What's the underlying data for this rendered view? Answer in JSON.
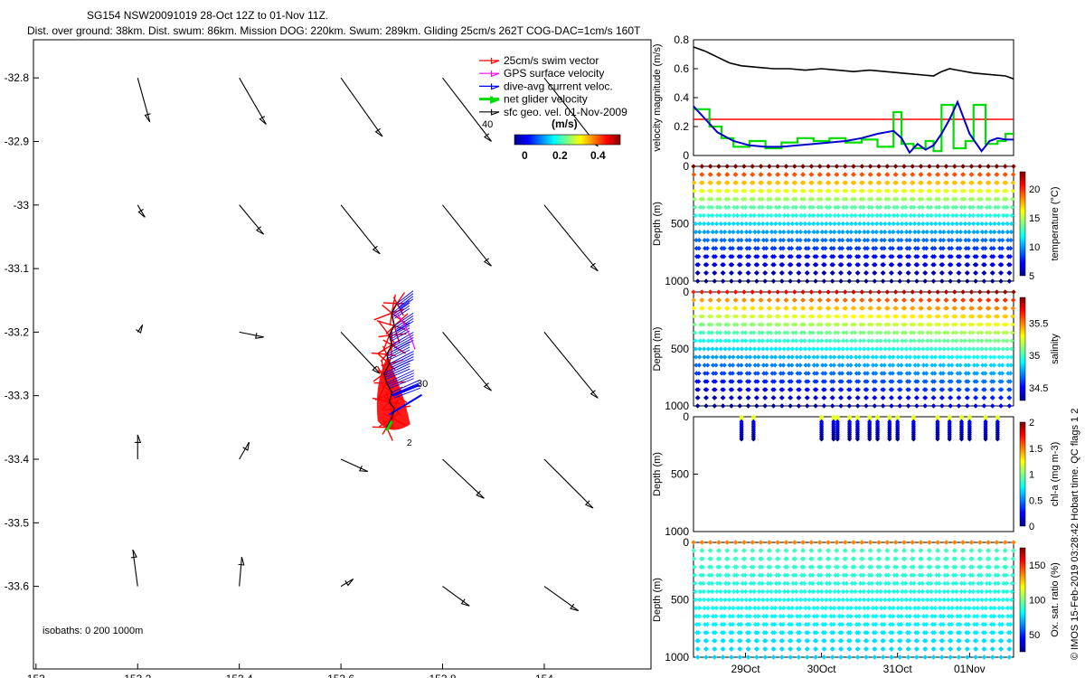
{
  "header": {
    "line1": "SG154 NSW20091019 28-Oct 12Z to 01-Nov 11Z.",
    "line2": "Dist. over ground: 38km. Dist. swum: 86km. Mission DOG: 220km. Swum: 289km. Gliding 25cm/s 262T COG-DAC=1cm/s 160T"
  },
  "credit": "© IMOS 15-Feb-2019 03:28:42 Hobart time. QC flags 1  2",
  "colors": {
    "swim": "#ff0000",
    "gps": "#ff00ff",
    "dac": "#0000ff",
    "net": "#00dd00",
    "geo": "#000000",
    "speed_line": "#000000"
  },
  "chart_data": [
    {
      "id": "track_map",
      "type": "scatter",
      "title": "",
      "xlabel": "",
      "ylabel": "",
      "xlim": [
        152.995,
        154.21
      ],
      "ylim": [
        -33.73,
        -32.74
      ],
      "x_ticks": [
        153,
        153.2,
        153.4,
        153.6,
        153.8,
        154
      ],
      "x_tick_labels": [
        "153",
        "153.2",
        "153.4",
        "153.6",
        "153.8",
        "154"
      ],
      "y_ticks": [
        -32.8,
        -32.9,
        -33,
        -33.1,
        -33.2,
        -33.3,
        -33.4,
        -33.5,
        -33.6
      ],
      "y_tick_labels": [
        "-32.8",
        "-32.9",
        "-33",
        "-33.1",
        "-33.2",
        "-33.3",
        "-33.4",
        "-33.5",
        "-33.6"
      ],
      "legend": [
        {
          "label": "25cm/s swim vector",
          "color": "#ff0000"
        },
        {
          "label": "GPS surface velocity",
          "color": "#ff00ff"
        },
        {
          "label": "dive-avg current veloc.",
          "color": "#0000ff"
        },
        {
          "label": "net glider velocity",
          "color": "#00dd00"
        },
        {
          "label": "sfc geo. vel. 01-Nov-2009",
          "color": "#000000"
        }
      ],
      "legend_position": "top-right",
      "colorbar": {
        "label": "(m/s)",
        "range": [
          0,
          0.5
        ],
        "tick_labels": [
          "0",
          "0.2",
          "0.4"
        ]
      },
      "isobath_label": "isobaths: 0   200   1000m",
      "track_labels": [
        "40",
        "30",
        "2"
      ],
      "geo_vectors": [
        {
          "lon": 153.2,
          "lat": -32.8,
          "u": 0.05,
          "v": -0.18
        },
        {
          "lon": 153.4,
          "lat": -32.8,
          "u": 0.11,
          "v": -0.19
        },
        {
          "lon": 153.6,
          "lat": -32.8,
          "u": 0.17,
          "v": -0.24
        },
        {
          "lon": 153.8,
          "lat": -32.8,
          "u": 0.2,
          "v": -0.26
        },
        {
          "lon": 154.0,
          "lat": -32.8,
          "u": 0.22,
          "v": -0.28
        },
        {
          "lon": 153.2,
          "lat": -33.0,
          "u": 0.03,
          "v": -0.05
        },
        {
          "lon": 153.4,
          "lat": -33.0,
          "u": 0.1,
          "v": -0.12
        },
        {
          "lon": 153.6,
          "lat": -33.0,
          "u": 0.16,
          "v": -0.2
        },
        {
          "lon": 153.8,
          "lat": -33.0,
          "u": 0.2,
          "v": -0.25
        },
        {
          "lon": 154.0,
          "lat": -33.0,
          "u": 0.22,
          "v": -0.27
        },
        {
          "lon": 153.2,
          "lat": -33.2,
          "u": 0.02,
          "v": 0.03
        },
        {
          "lon": 153.4,
          "lat": -33.2,
          "u": 0.1,
          "v": -0.02
        },
        {
          "lon": 153.6,
          "lat": -33.2,
          "u": 0.16,
          "v": -0.17
        },
        {
          "lon": 153.8,
          "lat": -33.2,
          "u": 0.2,
          "v": -0.24
        },
        {
          "lon": 154.0,
          "lat": -33.2,
          "u": 0.22,
          "v": -0.27
        },
        {
          "lon": 153.2,
          "lat": -33.4,
          "u": 0.0,
          "v": 0.1
        },
        {
          "lon": 153.4,
          "lat": -33.4,
          "u": 0.04,
          "v": 0.07
        },
        {
          "lon": 153.6,
          "lat": -33.4,
          "u": 0.11,
          "v": -0.05
        },
        {
          "lon": 153.8,
          "lat": -33.4,
          "u": 0.17,
          "v": -0.16
        },
        {
          "lon": 154.0,
          "lat": -33.4,
          "u": 0.2,
          "v": -0.2
        },
        {
          "lon": 153.2,
          "lat": -33.6,
          "u": -0.02,
          "v": 0.15
        },
        {
          "lon": 153.4,
          "lat": -33.6,
          "u": 0.01,
          "v": 0.12
        },
        {
          "lon": 153.6,
          "lat": -33.6,
          "u": 0.05,
          "v": 0.03
        },
        {
          "lon": 153.8,
          "lat": -33.6,
          "u": 0.11,
          "v": -0.08
        },
        {
          "lon": 154.0,
          "lat": -33.6,
          "u": 0.14,
          "v": -0.1
        }
      ],
      "glider_track": [
        {
          "lon": 153.71,
          "lat": -33.155
        },
        {
          "lon": 153.7,
          "lat": -33.17
        },
        {
          "lon": 153.705,
          "lat": -33.19
        },
        {
          "lon": 153.695,
          "lat": -33.205
        },
        {
          "lon": 153.7,
          "lat": -33.22
        },
        {
          "lon": 153.69,
          "lat": -33.235
        },
        {
          "lon": 153.695,
          "lat": -33.25
        },
        {
          "lon": 153.685,
          "lat": -33.265
        },
        {
          "lon": 153.69,
          "lat": -33.28
        },
        {
          "lon": 153.7,
          "lat": -33.295
        },
        {
          "lon": 153.695,
          "lat": -33.31
        },
        {
          "lon": 153.705,
          "lat": -33.32
        },
        {
          "lon": 153.7,
          "lat": -33.335
        },
        {
          "lon": 153.69,
          "lat": -33.35
        }
      ]
    },
    {
      "id": "velocity",
      "type": "line",
      "xlim": [
        0,
        4
      ],
      "ylim": [
        0,
        0.8
      ],
      "y_ticks": [
        0,
        0.2,
        0.4,
        0.6,
        0.8
      ],
      "y_tick_labels": [
        "0",
        "0.2",
        "0.4",
        "0.6",
        "0.8"
      ],
      "ylabel": "velocity magnitude (m/s)",
      "series": [
        {
          "name": "speed",
          "color": "#000000",
          "x": [
            0,
            0.15,
            0.3,
            0.45,
            0.6,
            0.8,
            1.0,
            1.2,
            1.4,
            1.6,
            1.8,
            2.0,
            2.2,
            2.4,
            2.6,
            2.8,
            3.0,
            3.1,
            3.2,
            3.3,
            3.5,
            3.7,
            3.9,
            4.0
          ],
          "y": [
            0.75,
            0.72,
            0.68,
            0.64,
            0.62,
            0.61,
            0.6,
            0.6,
            0.59,
            0.6,
            0.59,
            0.58,
            0.59,
            0.58,
            0.57,
            0.56,
            0.55,
            0.58,
            0.6,
            0.59,
            0.57,
            0.56,
            0.55,
            0.53
          ]
        },
        {
          "name": "swim 25 cm/s",
          "color": "#ff0000",
          "x": [
            0,
            4
          ],
          "y": [
            0.25,
            0.25
          ]
        },
        {
          "name": "net",
          "color": "#00dd00",
          "x": [
            0,
            0.2,
            0.2,
            0.35,
            0.35,
            0.5,
            0.5,
            0.7,
            0.7,
            0.9,
            0.9,
            1.1,
            1.1,
            1.3,
            1.3,
            1.5,
            1.5,
            1.7,
            1.7,
            1.9,
            1.9,
            2.1,
            2.1,
            2.3,
            2.3,
            2.5,
            2.5,
            2.6,
            2.6,
            2.75,
            2.75,
            2.9,
            2.9,
            3.0,
            3.0,
            3.1,
            3.1,
            3.25,
            3.25,
            3.4,
            3.4,
            3.5,
            3.5,
            3.65,
            3.65,
            3.8,
            3.8,
            3.9,
            3.9,
            4.0
          ],
          "y": [
            0.32,
            0.32,
            0.2,
            0.2,
            0.12,
            0.12,
            0.06,
            0.06,
            0.1,
            0.1,
            0.05,
            0.05,
            0.09,
            0.09,
            0.12,
            0.12,
            0.1,
            0.1,
            0.12,
            0.12,
            0.09,
            0.09,
            0.11,
            0.11,
            0.06,
            0.06,
            0.3,
            0.3,
            0.08,
            0.08,
            0.05,
            0.05,
            0.1,
            0.1,
            0.03,
            0.03,
            0.35,
            0.35,
            0.05,
            0.05,
            0.1,
            0.1,
            0.35,
            0.35,
            0.08,
            0.08,
            0.1,
            0.1,
            0.15,
            0.15
          ]
        },
        {
          "name": "dac",
          "color": "#0000cc",
          "x": [
            0,
            0.15,
            0.3,
            0.5,
            0.7,
            0.9,
            1.1,
            1.3,
            1.5,
            1.7,
            1.9,
            2.1,
            2.3,
            2.5,
            2.6,
            2.7,
            2.8,
            2.9,
            3.0,
            3.1,
            3.2,
            3.3,
            3.45,
            3.6,
            3.7,
            3.8,
            3.9,
            4.0
          ],
          "y": [
            0.34,
            0.25,
            0.16,
            0.1,
            0.07,
            0.06,
            0.06,
            0.07,
            0.08,
            0.09,
            0.1,
            0.12,
            0.15,
            0.17,
            0.12,
            0.02,
            0.08,
            0.04,
            0.07,
            0.15,
            0.25,
            0.37,
            0.15,
            0.03,
            0.1,
            0.12,
            0.11,
            0.11
          ]
        }
      ]
    },
    {
      "id": "temperature",
      "type": "scatter",
      "xlim": [
        0,
        4
      ],
      "ylim": [
        1000,
        0
      ],
      "y_ticks": [
        0,
        500,
        1000
      ],
      "y_tick_labels": [
        "0",
        "500",
        "1000"
      ],
      "ylabel": "Depth (m)",
      "colorbar": {
        "label": "temperature (°C)",
        "range": [
          5,
          23
        ],
        "ticks": [
          5,
          10,
          15,
          20
        ],
        "tick_labels": [
          "5",
          "10",
          "15",
          "20"
        ]
      },
      "dives": 38,
      "max_depth": 1000,
      "surface_value": 22,
      "bottom_value": 5,
      "profile": "thermocline"
    },
    {
      "id": "salinity",
      "type": "scatter",
      "xlim": [
        0,
        4
      ],
      "ylim": [
        1000,
        0
      ],
      "y_ticks": [
        0,
        500,
        1000
      ],
      "y_tick_labels": [
        "0",
        "500",
        "1000"
      ],
      "ylabel": "Depth (m)",
      "colorbar": {
        "label": "salinity",
        "range": [
          34.3,
          35.9
        ],
        "ticks": [
          34.5,
          35,
          35.5
        ],
        "tick_labels": [
          "34.5",
          "35",
          "35.5"
        ]
      },
      "dives": 38,
      "max_depth": 1000,
      "surface_value": 35.6,
      "bottom_value": 34.4,
      "profile": "halocline"
    },
    {
      "id": "chlorophyll",
      "type": "scatter",
      "xlim": [
        0,
        4
      ],
      "ylim": [
        1000,
        0
      ],
      "y_ticks": [
        0,
        500,
        1000
      ],
      "y_tick_labels": [
        "0",
        "500",
        "1000"
      ],
      "ylabel": "Depth (m)",
      "colorbar": {
        "label": "chl-a (mg m-3)",
        "range": [
          0,
          2
        ],
        "ticks": [
          0,
          0.5,
          1,
          1.5,
          2
        ],
        "tick_labels": [
          "0",
          "0.5",
          "1",
          "1.5",
          "2"
        ]
      },
      "casts_x": [
        0.6,
        0.75,
        1.6,
        1.75,
        1.8,
        1.95,
        2.05,
        2.2,
        2.3,
        2.45,
        2.55,
        2.75,
        3.05,
        3.2,
        3.35,
        3.45,
        3.65,
        3.8
      ],
      "cast_depth": 200,
      "surface_value": 1.2
    },
    {
      "id": "oxygen",
      "type": "scatter",
      "xlim": [
        0,
        4
      ],
      "ylim": [
        1000,
        0
      ],
      "y_ticks": [
        0,
        500,
        1000
      ],
      "y_tick_labels": [
        "0",
        "500",
        "1000"
      ],
      "ylabel": "Depth (m)",
      "xticks": [
        0.65,
        1.6,
        2.55,
        3.45
      ],
      "x_tick_labels": [
        "29Oct",
        "30Oct",
        "31Oct",
        "01Nov"
      ],
      "colorbar": {
        "label": "Ox. sat. ratio (%)",
        "range": [
          25,
          175
        ],
        "ticks": [
          50,
          100,
          150
        ],
        "tick_labels": [
          "50",
          "100",
          "150"
        ]
      },
      "dives": 38,
      "max_depth": 1000,
      "surface_value": 140,
      "bottom_value": 70,
      "profile": "oxycline"
    }
  ]
}
